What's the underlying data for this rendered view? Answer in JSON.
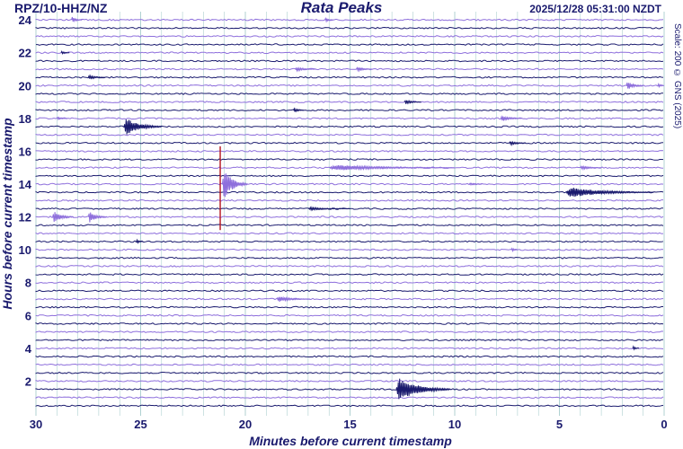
{
  "header": {
    "station": "RPZ/10-HHZ/NZ",
    "title": "Rata Peaks",
    "timestamp": "2025/12/28 05:31:00 NZDT",
    "scale": "Scale: 200 © GNS (2025)"
  },
  "chart_data": {
    "type": "helicorder",
    "title": "Rata Peaks",
    "xlabel": "Minutes before current timestamp",
    "ylabel": "Hours before current timestamp",
    "xlim": [
      30,
      0
    ],
    "ylim": [
      0,
      24.5
    ],
    "x_ticks": [
      "30",
      "25",
      "20",
      "15",
      "10",
      "5",
      "0"
    ],
    "y_ticks": [
      "2",
      "4",
      "6",
      "8",
      "10",
      "12",
      "14",
      "16",
      "18",
      "20",
      "22",
      "24"
    ],
    "trace_rows": 48,
    "colors": {
      "odd_rows": "#1a1a6e",
      "even_rows": "#8e6fdc",
      "marker": "#b4141e",
      "grid": "#5aa0a0"
    },
    "marker_minute": 21.2,
    "marker_hours": [
      11.2,
      16.3
    ],
    "events": [
      {
        "hours_before": 24.0,
        "minute": 28.3,
        "amp": 4,
        "dur": 0.5,
        "row": "even"
      },
      {
        "hours_before": 24.0,
        "minute": 16.2,
        "amp": 3,
        "dur": 0.4,
        "row": "even"
      },
      {
        "hours_before": 20.0,
        "minute": 1.8,
        "amp": 6,
        "dur": 0.8,
        "row": "even"
      },
      {
        "hours_before": 20.0,
        "minute": 0.3,
        "amp": 3,
        "dur": 0.4,
        "row": "even"
      },
      {
        "hours_before": 17.5,
        "minute": 25.8,
        "amp": 12,
        "dur": 1.8,
        "row": "odd"
      },
      {
        "hours_before": 15.0,
        "minute": 16.0,
        "amp": 4,
        "dur": 6.0,
        "row": "even"
      },
      {
        "hours_before": 14.0,
        "minute": 21.1,
        "amp": 22,
        "dur": 1.2,
        "row": "even"
      },
      {
        "hours_before": 13.5,
        "minute": 4.7,
        "amp": 7,
        "dur": 4.2,
        "row": "odd"
      },
      {
        "hours_before": 12.0,
        "minute": 29.2,
        "amp": 9,
        "dur": 1.0,
        "row": "even"
      },
      {
        "hours_before": 12.0,
        "minute": 27.5,
        "amp": 8,
        "dur": 0.9,
        "row": "even"
      },
      {
        "hours_before": 7.0,
        "minute": 18.5,
        "amp": 4,
        "dur": 1.6,
        "row": "even"
      },
      {
        "hours_before": 1.5,
        "minute": 12.8,
        "amp": 16,
        "dur": 2.6,
        "row": "odd"
      },
      {
        "hours_before": 22.0,
        "minute": 28.8,
        "amp": 2,
        "dur": 0.4,
        "row": "odd"
      },
      {
        "hours_before": 21.0,
        "minute": 17.6,
        "amp": 3,
        "dur": 1.0,
        "row": "even"
      },
      {
        "hours_before": 21.0,
        "minute": 14.7,
        "amp": 3,
        "dur": 0.8,
        "row": "even"
      },
      {
        "hours_before": 20.5,
        "minute": 27.5,
        "amp": 3,
        "dur": 0.8,
        "row": "odd"
      },
      {
        "hours_before": 19.0,
        "minute": 12.4,
        "amp": 3,
        "dur": 0.8,
        "row": "odd"
      },
      {
        "hours_before": 18.5,
        "minute": 17.7,
        "amp": 3,
        "dur": 0.5,
        "row": "odd"
      },
      {
        "hours_before": 18.0,
        "minute": 7.8,
        "amp": 4,
        "dur": 1.0,
        "row": "even"
      },
      {
        "hours_before": 18.0,
        "minute": 29.0,
        "amp": 2,
        "dur": 0.5,
        "row": "even"
      },
      {
        "hours_before": 16.5,
        "minute": 7.4,
        "amp": 3,
        "dur": 0.8,
        "row": "odd"
      },
      {
        "hours_before": 15.0,
        "minute": 4.0,
        "amp": 3,
        "dur": 1.0,
        "row": "even"
      },
      {
        "hours_before": 14.0,
        "minute": 9.3,
        "amp": 2,
        "dur": 0.6,
        "row": "even"
      },
      {
        "hours_before": 12.5,
        "minute": 17.0,
        "amp": 2,
        "dur": 2.0,
        "row": "odd"
      },
      {
        "hours_before": 10.5,
        "minute": 25.2,
        "amp": 3,
        "dur": 0.3,
        "row": "odd"
      },
      {
        "hours_before": 10.0,
        "minute": 7.3,
        "amp": 3,
        "dur": 0.3,
        "row": "even"
      },
      {
        "hours_before": 4.0,
        "minute": 1.5,
        "amp": 3,
        "dur": 0.3,
        "row": "odd"
      }
    ]
  }
}
